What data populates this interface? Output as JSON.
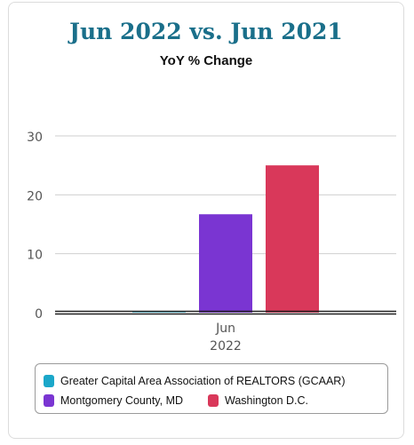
{
  "title": "Jun 2022 vs. Jun 2021",
  "subtitle": "YoY % Change",
  "colors": {
    "title": "#1a6f8a",
    "gcaar": "#1ba7c9",
    "montgomery": "#7a35d2",
    "dc": "#d9385a"
  },
  "legend": {
    "items": [
      {
        "label": "Greater Capital Area Association of REALTORS (GCAAR)",
        "color": "#1ba7c9"
      },
      {
        "label": "Montgomery County, MD",
        "color": "#7a35d2"
      },
      {
        "label": "Washington D.C.",
        "color": "#d9385a"
      }
    ]
  },
  "chart_data": {
    "type": "bar",
    "categories": [
      "Jun\n2022"
    ],
    "series": [
      {
        "name": "Greater Capital Area Association of REALTORS (GCAAR)",
        "values": [
          0
        ],
        "color": "#1ba7c9"
      },
      {
        "name": "Montgomery County, MD",
        "values": [
          16.7
        ],
        "color": "#7a35d2"
      },
      {
        "name": "Washington D.C.",
        "values": [
          25
        ],
        "color": "#d9385a"
      }
    ],
    "yticks": [
      "0",
      "10",
      "20",
      "30"
    ],
    "ylim": [
      0,
      30
    ],
    "xlabel": "",
    "ylabel": "",
    "grid": true,
    "legend_position": "bottom"
  }
}
